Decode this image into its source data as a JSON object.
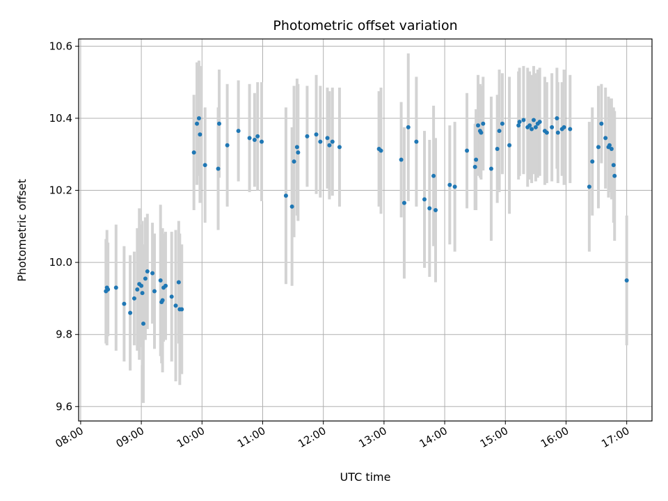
{
  "chart_data": {
    "type": "scatter",
    "title": "Photometric offset variation",
    "xlabel": "UTC time",
    "ylabel": "Photometric offset",
    "xlim": [
      "07:58",
      "17:25"
    ],
    "ylim": [
      9.56,
      10.62
    ],
    "x_ticks": [
      "08:00",
      "09:00",
      "10:00",
      "11:00",
      "12:00",
      "13:00",
      "14:00",
      "15:00",
      "16:00",
      "17:00"
    ],
    "y_ticks": [
      9.6,
      9.8,
      10.0,
      10.2,
      10.4,
      10.6
    ],
    "y_tick_labels": [
      "9.6",
      "9.8",
      "10.0",
      "10.2",
      "10.4",
      "10.6"
    ],
    "grid": true,
    "x_tick_rotation": 30,
    "colors": {
      "points": "#1f77b4",
      "error_bars": "#d3d3d3",
      "grid": "#b0b0b0"
    },
    "series": [
      {
        "x": [
          "08:25",
          "08:26",
          "08:27",
          "08:35",
          "08:43",
          "08:49",
          "08:53",
          "08:56",
          "08:58",
          "09:00",
          "09:01",
          "09:02",
          "09:04",
          "09:06",
          "09:11",
          "09:13",
          "09:19",
          "09:20",
          "09:21",
          "09:22",
          "09:24",
          "09:30",
          "09:34",
          "09:37",
          "09:38",
          "09:40",
          "09:52",
          "09:55",
          "09:57",
          "09:58",
          "10:03",
          "10:16",
          "10:17",
          "10:25",
          "10:36",
          "10:47",
          "10:52",
          "10:55",
          "10:59",
          "11:23",
          "11:29",
          "11:31",
          "11:34",
          "11:35",
          "11:44",
          "11:53",
          "11:57",
          "12:04",
          "12:06",
          "12:09",
          "12:16",
          "12:55",
          "12:57",
          "13:17",
          "13:20",
          "13:24",
          "13:32",
          "13:40",
          "13:45",
          "13:49",
          "13:51",
          "14:05",
          "14:10",
          "14:22",
          "14:30",
          "14:31",
          "14:33",
          "14:35",
          "14:36",
          "14:38",
          "14:46",
          "14:52",
          "14:54",
          "14:57",
          "15:04",
          "15:13",
          "15:14",
          "15:18",
          "15:22",
          "15:24",
          "15:26",
          "15:28",
          "15:30",
          "15:32",
          "15:34",
          "15:39",
          "15:41",
          "15:46",
          "15:51",
          "15:52",
          "15:56",
          "15:58",
          "16:04",
          "16:23",
          "16:26",
          "16:32",
          "16:35",
          "16:39",
          "16:42",
          "16:43",
          "16:45",
          "16:47",
          "16:48",
          "17:00"
        ],
        "y": [
          9.92,
          9.93,
          9.925,
          9.93,
          9.885,
          9.86,
          9.9,
          9.925,
          9.94,
          9.935,
          9.915,
          9.83,
          9.955,
          9.975,
          9.97,
          9.92,
          9.95,
          9.89,
          9.895,
          9.93,
          9.935,
          9.905,
          9.88,
          9.945,
          9.87,
          9.87,
          10.305,
          10.385,
          10.4,
          10.355,
          10.27,
          10.26,
          10.385,
          10.325,
          10.365,
          10.345,
          10.34,
          10.35,
          10.335,
          10.185,
          10.155,
          10.28,
          10.32,
          10.305,
          10.35,
          10.355,
          10.335,
          10.345,
          10.325,
          10.335,
          10.32,
          10.315,
          10.31,
          10.285,
          10.165,
          10.375,
          10.335,
          10.175,
          10.15,
          10.24,
          10.145,
          10.215,
          10.21,
          10.31,
          10.265,
          10.285,
          10.38,
          10.365,
          10.36,
          10.385,
          10.26,
          10.315,
          10.365,
          10.385,
          10.325,
          10.38,
          10.39,
          10.395,
          10.375,
          10.38,
          10.37,
          10.395,
          10.375,
          10.385,
          10.39,
          10.365,
          10.36,
          10.375,
          10.4,
          10.36,
          10.37,
          10.375,
          10.37,
          10.21,
          10.28,
          10.32,
          10.385,
          10.345,
          10.32,
          10.325,
          10.315,
          10.27,
          10.24,
          9.95
        ],
        "yerr": [
          0.145,
          0.16,
          0.13,
          0.175,
          0.16,
          0.16,
          0.13,
          0.17,
          0.21,
          0.17,
          0.2,
          0.22,
          0.17,
          0.16,
          0.14,
          0.16,
          0.21,
          0.17,
          0.2,
          0.15,
          0.15,
          0.18,
          0.21,
          0.17,
          0.21,
          0.18,
          0.16,
          0.17,
          0.16,
          0.19,
          0.16,
          0.17,
          0.15,
          0.17,
          0.14,
          0.15,
          0.13,
          0.15,
          0.165,
          0.245,
          0.22,
          0.21,
          0.19,
          0.19,
          0.14,
          0.165,
          0.155,
          0.14,
          0.15,
          0.15,
          0.165,
          0.16,
          0.175,
          0.16,
          0.21,
          0.205,
          0.18,
          0.19,
          0.19,
          0.195,
          0.2,
          0.165,
          0.18,
          0.16,
          0.12,
          0.14,
          0.14,
          0.13,
          0.13,
          0.13,
          0.2,
          0.15,
          0.17,
          0.14,
          0.19,
          0.15,
          0.15,
          0.15,
          0.165,
          0.15,
          0.15,
          0.15,
          0.15,
          0.15,
          0.15,
          0.15,
          0.14,
          0.15,
          0.14,
          0.14,
          0.13,
          0.16,
          0.15,
          0.18,
          0.15,
          0.17,
          0.11,
          0.14,
          0.14,
          0.13,
          0.14,
          0.16,
          0.18,
          0.18
        ]
      }
    ]
  }
}
